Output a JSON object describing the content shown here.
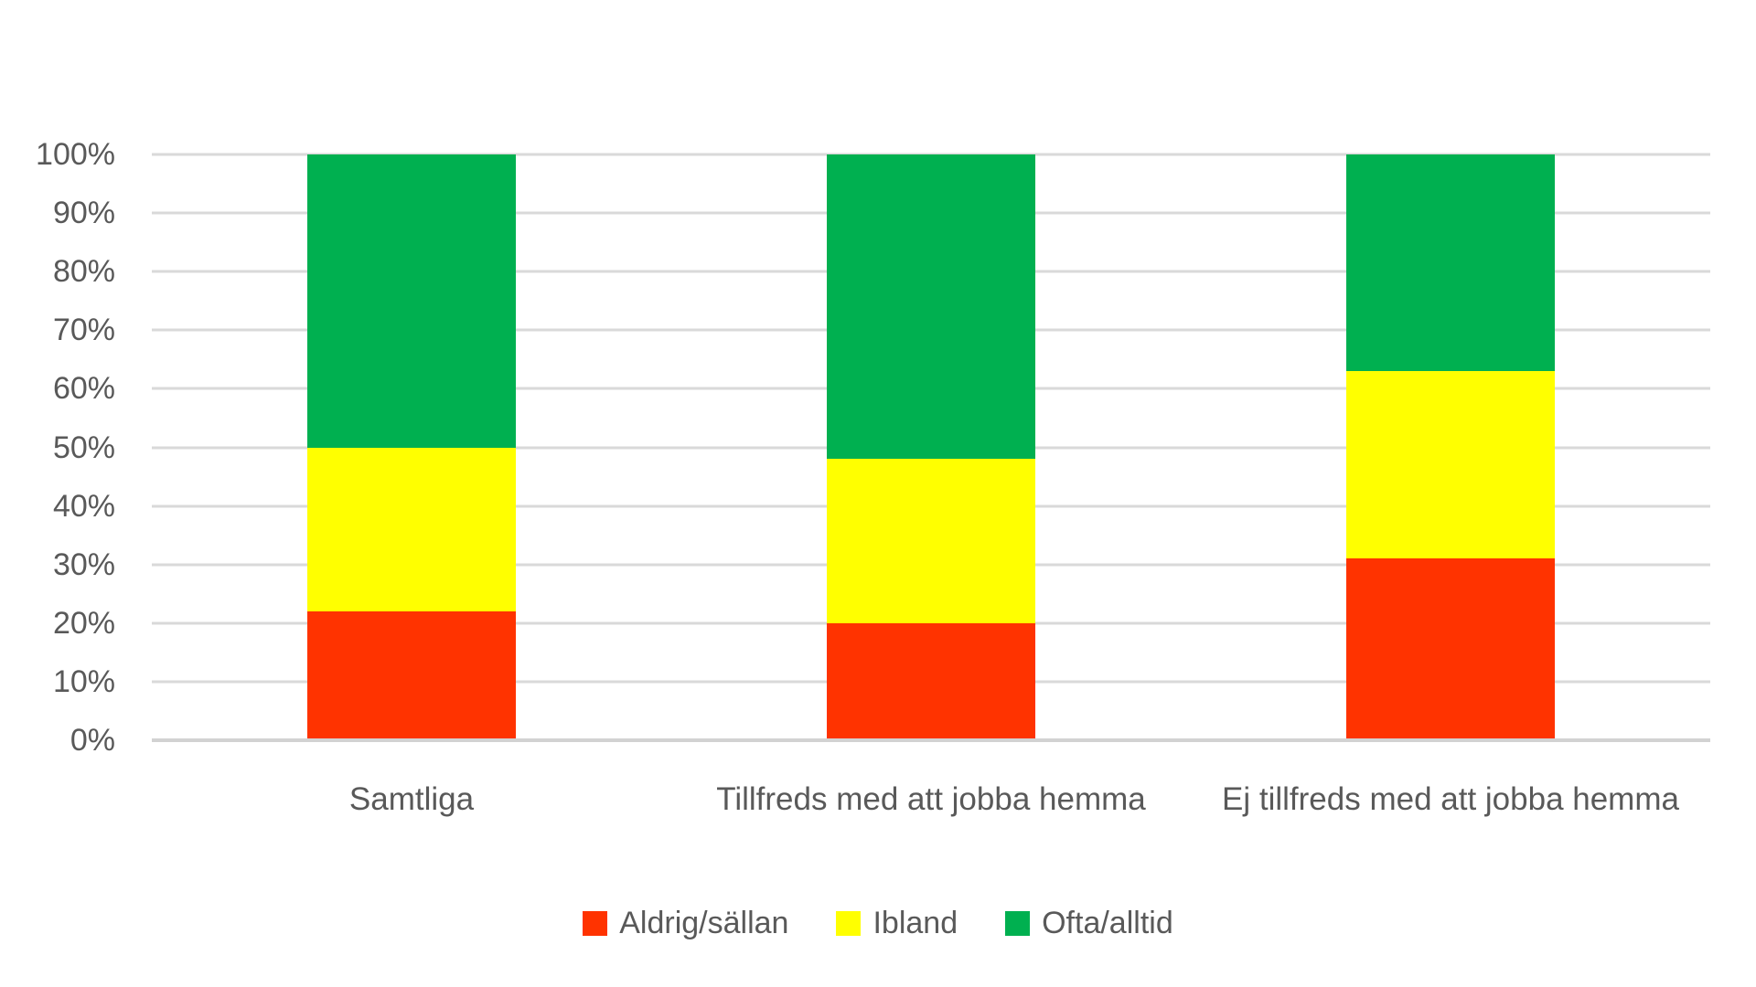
{
  "chart_data": {
    "type": "bar",
    "variant": "stacked-100-percent-column",
    "title": "",
    "xlabel": "",
    "ylabel": "",
    "categories": [
      "Samtliga",
      "Tillfreds med att jobba hemma",
      "Ej tillfreds med att jobba hemma"
    ],
    "series": [
      {
        "name": "Aldrig/sällan",
        "color": "#FF3300",
        "values": [
          22,
          20,
          31
        ]
      },
      {
        "name": "Ibland",
        "color": "#FFFF00",
        "values": [
          28,
          28,
          32
        ]
      },
      {
        "name": "Ofta/alltid",
        "color": "#00B050",
        "values": [
          50,
          52,
          37
        ]
      }
    ],
    "y_axis": {
      "min": 0,
      "max": 100,
      "step": 10,
      "tick_labels": [
        "0%",
        "10%",
        "20%",
        "30%",
        "40%",
        "50%",
        "60%",
        "70%",
        "80%",
        "90%",
        "100%"
      ]
    },
    "grid": true,
    "legend_position": "bottom",
    "colors": {
      "gridline": "#D9D9D9",
      "axis_line": "#D2D2D2",
      "text": "#595959",
      "background": "#FFFFFF"
    }
  }
}
